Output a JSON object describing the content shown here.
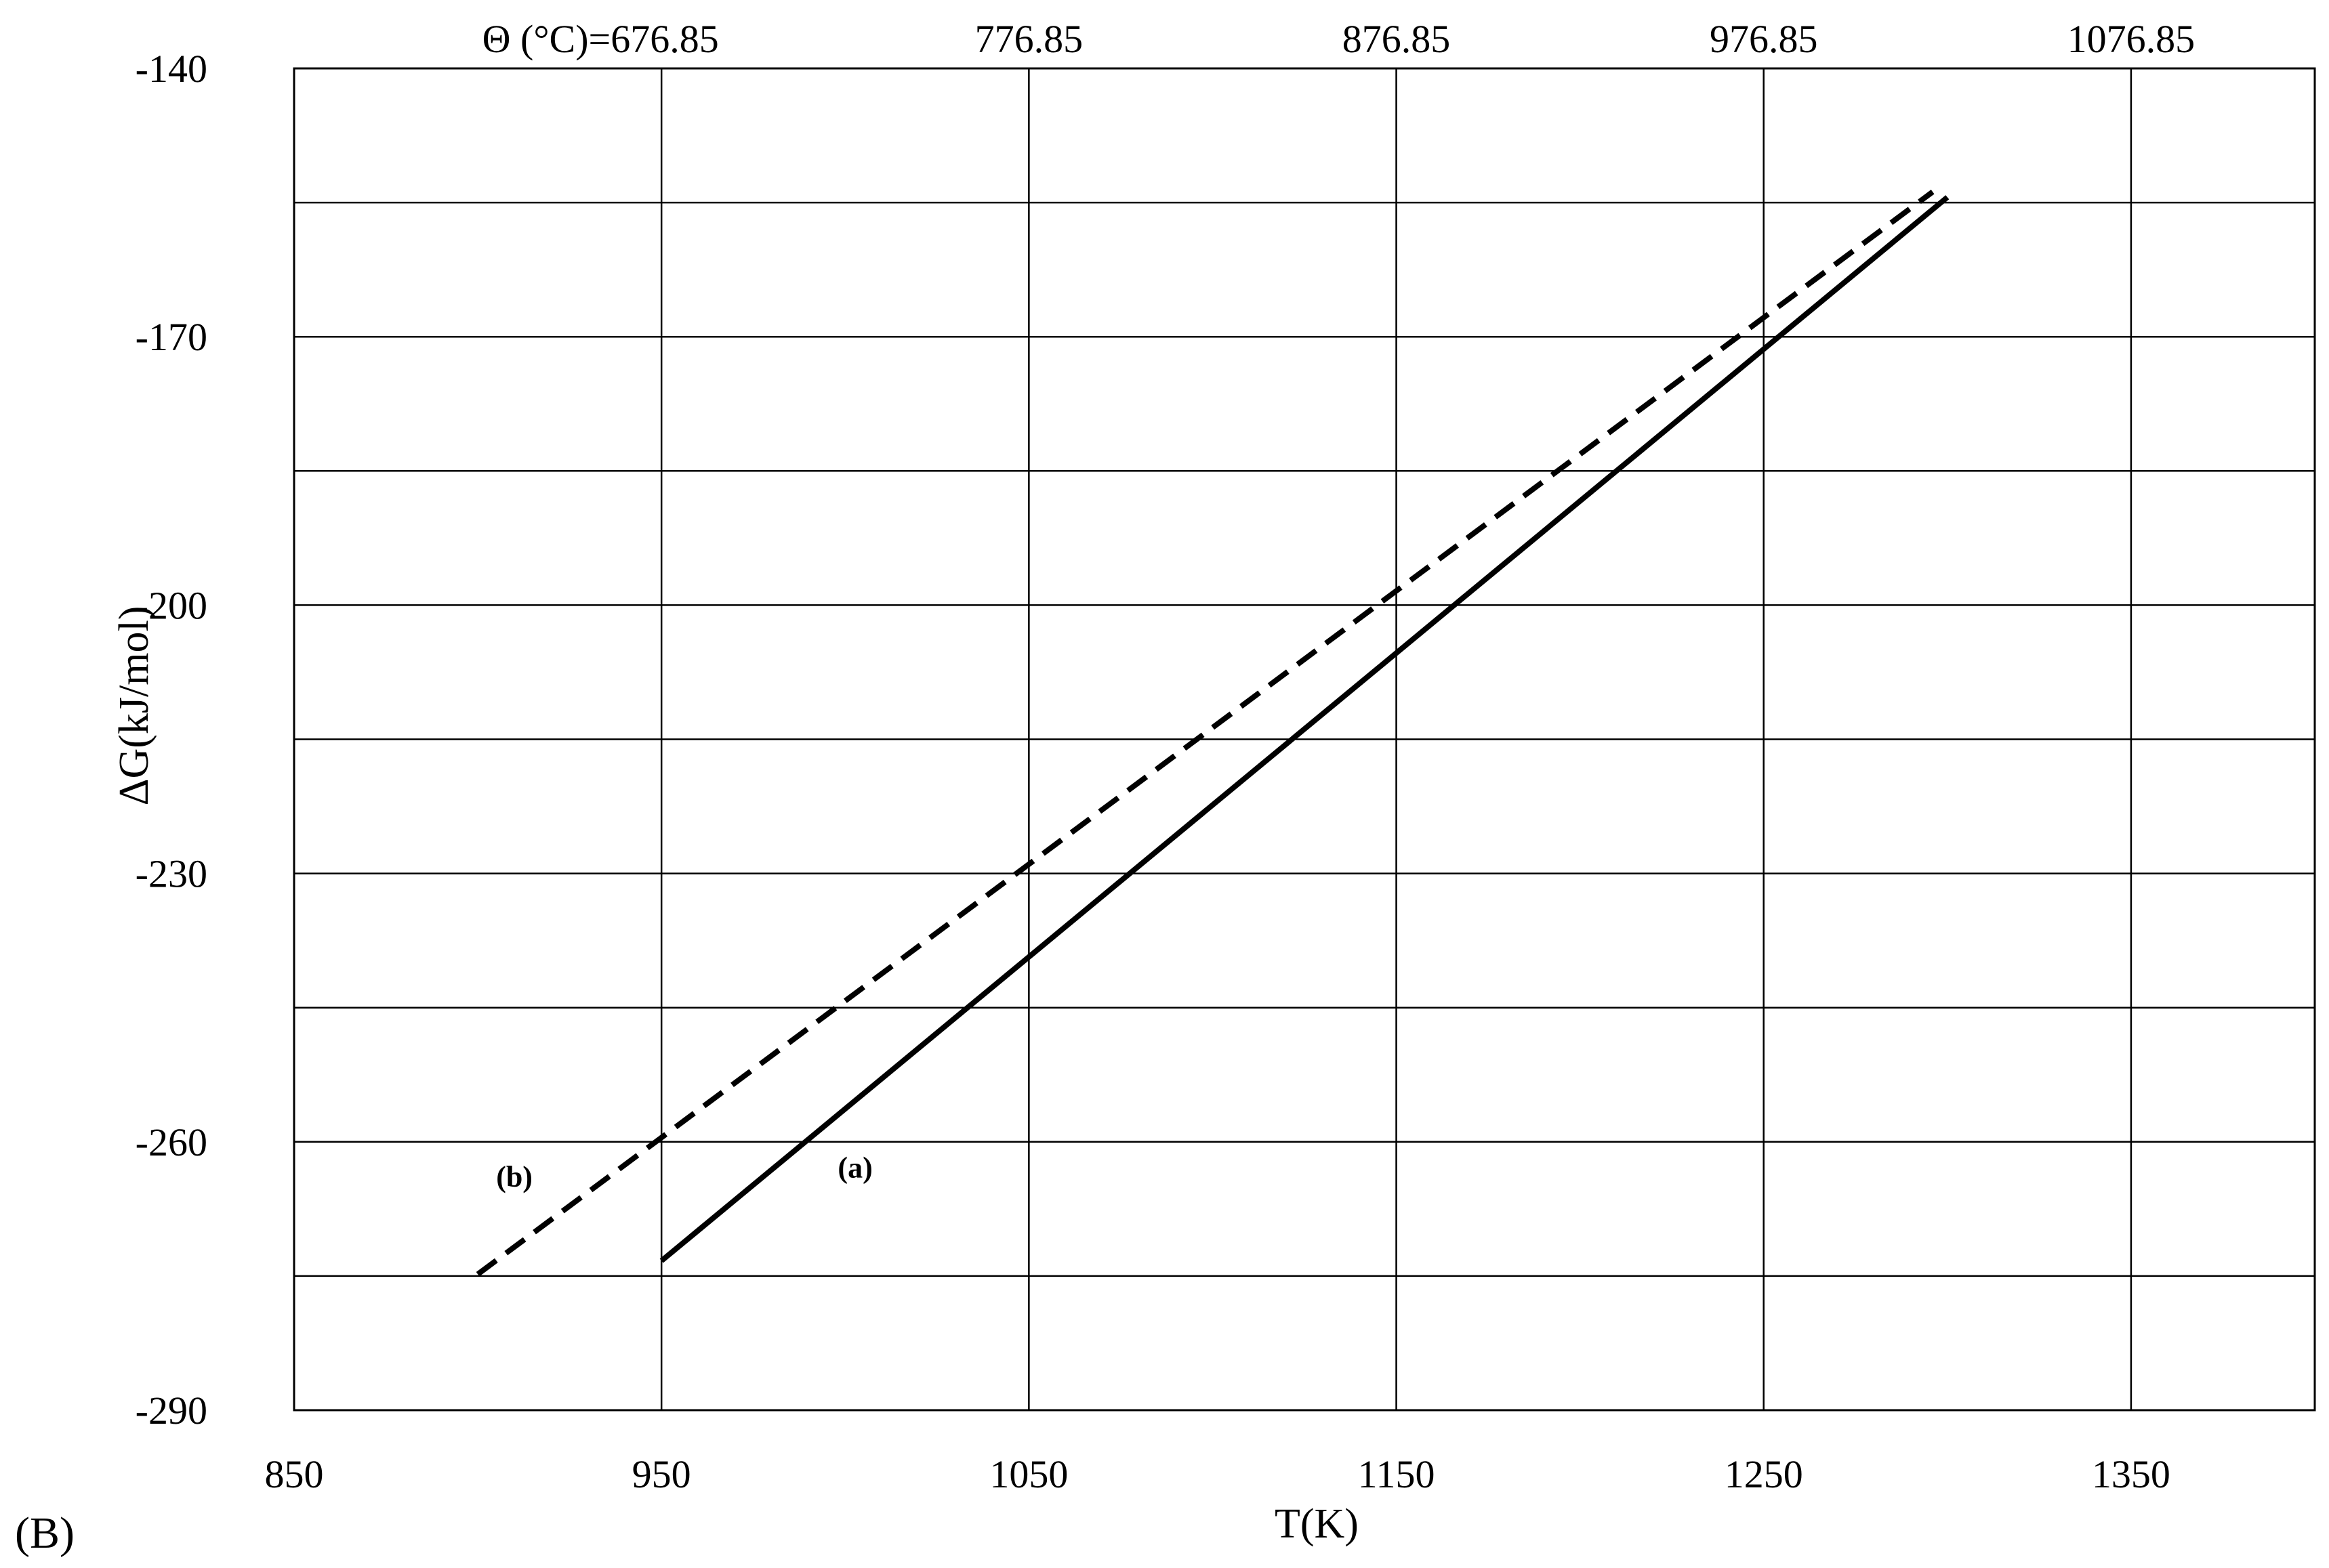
{
  "panel_label": "(B)",
  "chart_data": {
    "type": "line",
    "xlabel": "T(K)",
    "ylabel": "ΔG(kJ/mol)",
    "xlim": [
      850,
      1400
    ],
    "ylim": [
      -290,
      -140
    ],
    "x_ticks": [
      850,
      950,
      1050,
      1150,
      1250,
      1350
    ],
    "x_tick_labels": [
      "850",
      "950",
      "1050",
      "1150",
      "1250",
      "1350"
    ],
    "x_grid": [
      950,
      1050,
      1150,
      1250,
      1350
    ],
    "y_ticks": [
      -140,
      -170,
      -200,
      -230,
      -260,
      -290
    ],
    "y_tick_labels": [
      "-140",
      "-170",
      "-200",
      "-230",
      "-260",
      "-290"
    ],
    "y_grid": [
      -155,
      -170,
      -185,
      -200,
      -215,
      -230,
      -245,
      -260,
      -275
    ],
    "secondary_x_axis": {
      "label_prefix": "Θ (°C)=",
      "ticks": [
        950,
        1050,
        1150,
        1250,
        1350
      ],
      "tick_labels": [
        "676.85",
        "776.85",
        "876.85",
        "976.85",
        "1076.85"
      ]
    },
    "grid": true,
    "legend": "none",
    "series": [
      {
        "name": "(a)",
        "style": "solid",
        "color": "#000000",
        "x": [
          950,
          1300
        ],
        "y": [
          -273.3,
          -154.4
        ],
        "label_at": [
          998,
          -264
        ]
      },
      {
        "name": "(b)",
        "style": "dashed",
        "color": "#000000",
        "x": [
          900,
          1296
        ],
        "y": [
          -274.8,
          -153.8
        ],
        "label_at": [
          905,
          -265
        ]
      }
    ]
  }
}
